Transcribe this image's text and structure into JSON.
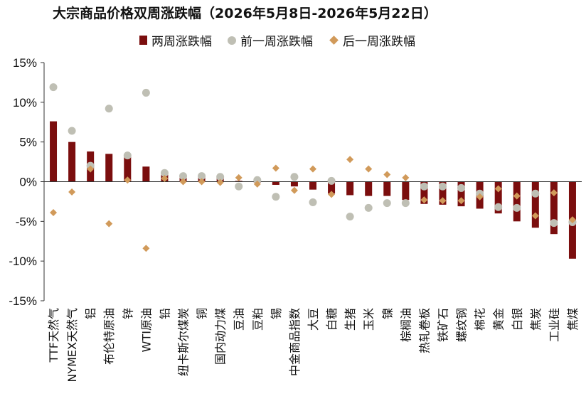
{
  "chart_data": {
    "type": "bar",
    "title": "大宗商品价格双周涨跌幅（2026年5月8日-2026年5月22日）",
    "ylim": [
      -15,
      15
    ],
    "yticks": [
      15,
      10,
      5,
      0,
      -5,
      -10,
      -15
    ],
    "ytick_labels": [
      "15%",
      "10%",
      "5%",
      "0%",
      "-5%",
      "-10%",
      "-15%"
    ],
    "legend_position": "top",
    "categories": [
      "TTF天然气",
      "NYMEX天然气",
      "铝",
      "布伦特原油",
      "锌",
      "WTI原油",
      "铅",
      "纽卡斯尔煤炭",
      "铜",
      "国内动力煤",
      "豆油",
      "豆粕",
      "锡",
      "中金商品指数",
      "大豆",
      "白糖",
      "生猪",
      "玉米",
      "镍",
      "棕榈油",
      "热轧卷板",
      "铁矿石",
      "螺纹钢",
      "棉花",
      "黄金",
      "白银",
      "焦炭",
      "工业硅",
      "焦煤"
    ],
    "series": [
      {
        "name": "两周涨跌幅",
        "kind": "bar",
        "color": "#7b0e0e",
        "values": [
          7.6,
          5.0,
          3.8,
          3.5,
          3.2,
          1.9,
          1.1,
          0.7,
          0.6,
          0.5,
          0.1,
          -0.1,
          -0.4,
          -0.6,
          -1.0,
          -1.5,
          -1.7,
          -1.8,
          -1.8,
          -2.3,
          -2.8,
          -2.9,
          -3.1,
          -3.4,
          -4.0,
          -5.0,
          -5.8,
          -6.6,
          -9.7
        ]
      },
      {
        "name": "前一周涨跌幅",
        "kind": "dot",
        "color": "#bfbfb4",
        "values": [
          11.9,
          6.4,
          2.0,
          9.2,
          3.3,
          11.2,
          1.1,
          0.7,
          0.7,
          0.6,
          -0.6,
          0.2,
          -1.9,
          0.6,
          -2.6,
          0.1,
          -4.4,
          -3.3,
          -2.7,
          -2.7,
          -0.6,
          -0.6,
          -0.8,
          -1.5,
          -3.2,
          -3.3,
          -1.5,
          -5.2,
          -5.1
        ]
      },
      {
        "name": "后一周涨跌幅",
        "kind": "diamond",
        "color": "#d19a5a",
        "values": [
          -3.9,
          -1.3,
          1.6,
          -5.3,
          0.2,
          -8.4,
          0.4,
          0.0,
          0.0,
          -0.1,
          0.5,
          -0.3,
          1.7,
          -1.1,
          1.6,
          -1.6,
          2.8,
          1.6,
          0.9,
          0.5,
          -2.3,
          -2.4,
          -2.4,
          -1.9,
          -0.9,
          -1.8,
          -4.3,
          -1.4,
          -4.8
        ]
      }
    ]
  }
}
